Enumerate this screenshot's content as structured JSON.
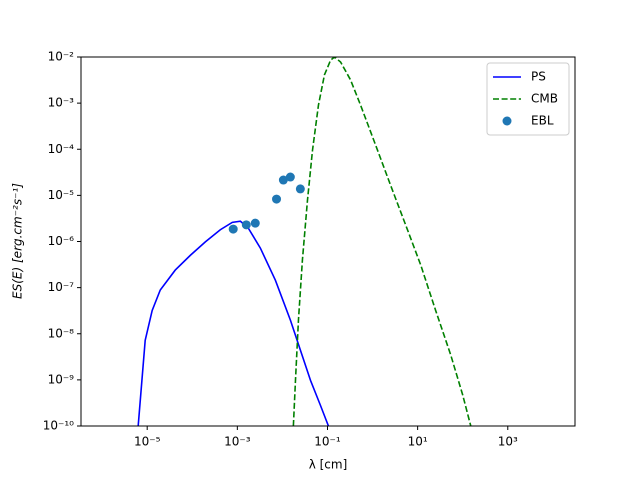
{
  "chart_data": {
    "type": "line",
    "xlabel": "λ [cm]",
    "ylabel": "ES(E) [erg.cm⁻²s⁻¹]",
    "xscale": "log",
    "yscale": "log",
    "xlim": [
      3.4e-07,
      31000.0
    ],
    "ylim": [
      1e-10,
      0.01
    ],
    "xticks": [
      {
        "value": 1e-05,
        "label": "10⁻⁵"
      },
      {
        "value": 0.001,
        "label": "10⁻³"
      },
      {
        "value": 0.1,
        "label": "10⁻¹"
      },
      {
        "value": 10,
        "label": "10¹"
      },
      {
        "value": 1000,
        "label": "10³"
      }
    ],
    "yticks": [
      {
        "value": 1e-10,
        "label": "10⁻¹⁰"
      },
      {
        "value": 1e-09,
        "label": "10⁻⁹"
      },
      {
        "value": 1e-08,
        "label": "10⁻⁸"
      },
      {
        "value": 1e-07,
        "label": "10⁻⁷"
      },
      {
        "value": 1e-06,
        "label": "10⁻⁶"
      },
      {
        "value": 1e-05,
        "label": "10⁻⁵"
      },
      {
        "value": 0.0001,
        "label": "10⁻⁴"
      },
      {
        "value": 0.001,
        "label": "10⁻³"
      },
      {
        "value": 0.01,
        "label": "10⁻²"
      }
    ],
    "legend": "upper right",
    "series": [
      {
        "name": "PS",
        "type": "line",
        "dash": "solid",
        "color": "#0000ff",
        "x": [
          6.31e-06,
          9.03e-06,
          1.29e-05,
          1.95e-05,
          4.19e-05,
          9.03e-05,
          0.000195,
          0.000419,
          0.000774,
          0.00117,
          0.00175,
          0.00324,
          0.00698,
          0.0151,
          0.0251,
          0.0419,
          0.0698,
          0.105
        ],
        "values": [
          1e-10,
          7.2e-09,
          3.2e-08,
          8.9e-08,
          2.4e-07,
          5e-07,
          9.8e-07,
          1.8e-06,
          2.6e-06,
          2.75e-06,
          1.95e-06,
          7.2e-07,
          1.45e-07,
          1.95e-08,
          4.4e-09,
          9.8e-10,
          2.8e-10,
          1e-10
        ]
      },
      {
        "name": "CMB",
        "type": "line",
        "dash": "dashed",
        "color": "#008000",
        "x": [
          0.0175,
          0.0195,
          0.0227,
          0.0278,
          0.036,
          0.0465,
          0.0631,
          0.0857,
          0.117,
          0.143,
          0.195,
          0.324,
          0.541,
          1.17,
          2.51,
          5.41,
          11.7,
          25.1,
          54.1,
          100,
          151
        ],
        "values": [
          1e-10,
          9.8e-10,
          2e-08,
          4e-07,
          7.9e-06,
          9.5e-05,
          0.00091,
          0.0041,
          0.0085,
          0.01,
          0.0078,
          0.0032,
          0.00091,
          0.000123,
          1.66e-05,
          2.3e-06,
          3.1e-07,
          3.2e-08,
          3.5e-09,
          4.7e-10,
          1e-10
        ]
      },
      {
        "name": "EBL",
        "type": "scatter",
        "color": "#1f77b4",
        "x": [
          0.00081,
          0.00158,
          0.0025,
          0.0074,
          0.0105,
          0.015,
          0.025
        ],
        "values": [
          1.86e-06,
          2.3e-06,
          2.5e-06,
          8.3e-06,
          2.15e-05,
          2.5e-05,
          1.38e-05
        ]
      }
    ]
  }
}
